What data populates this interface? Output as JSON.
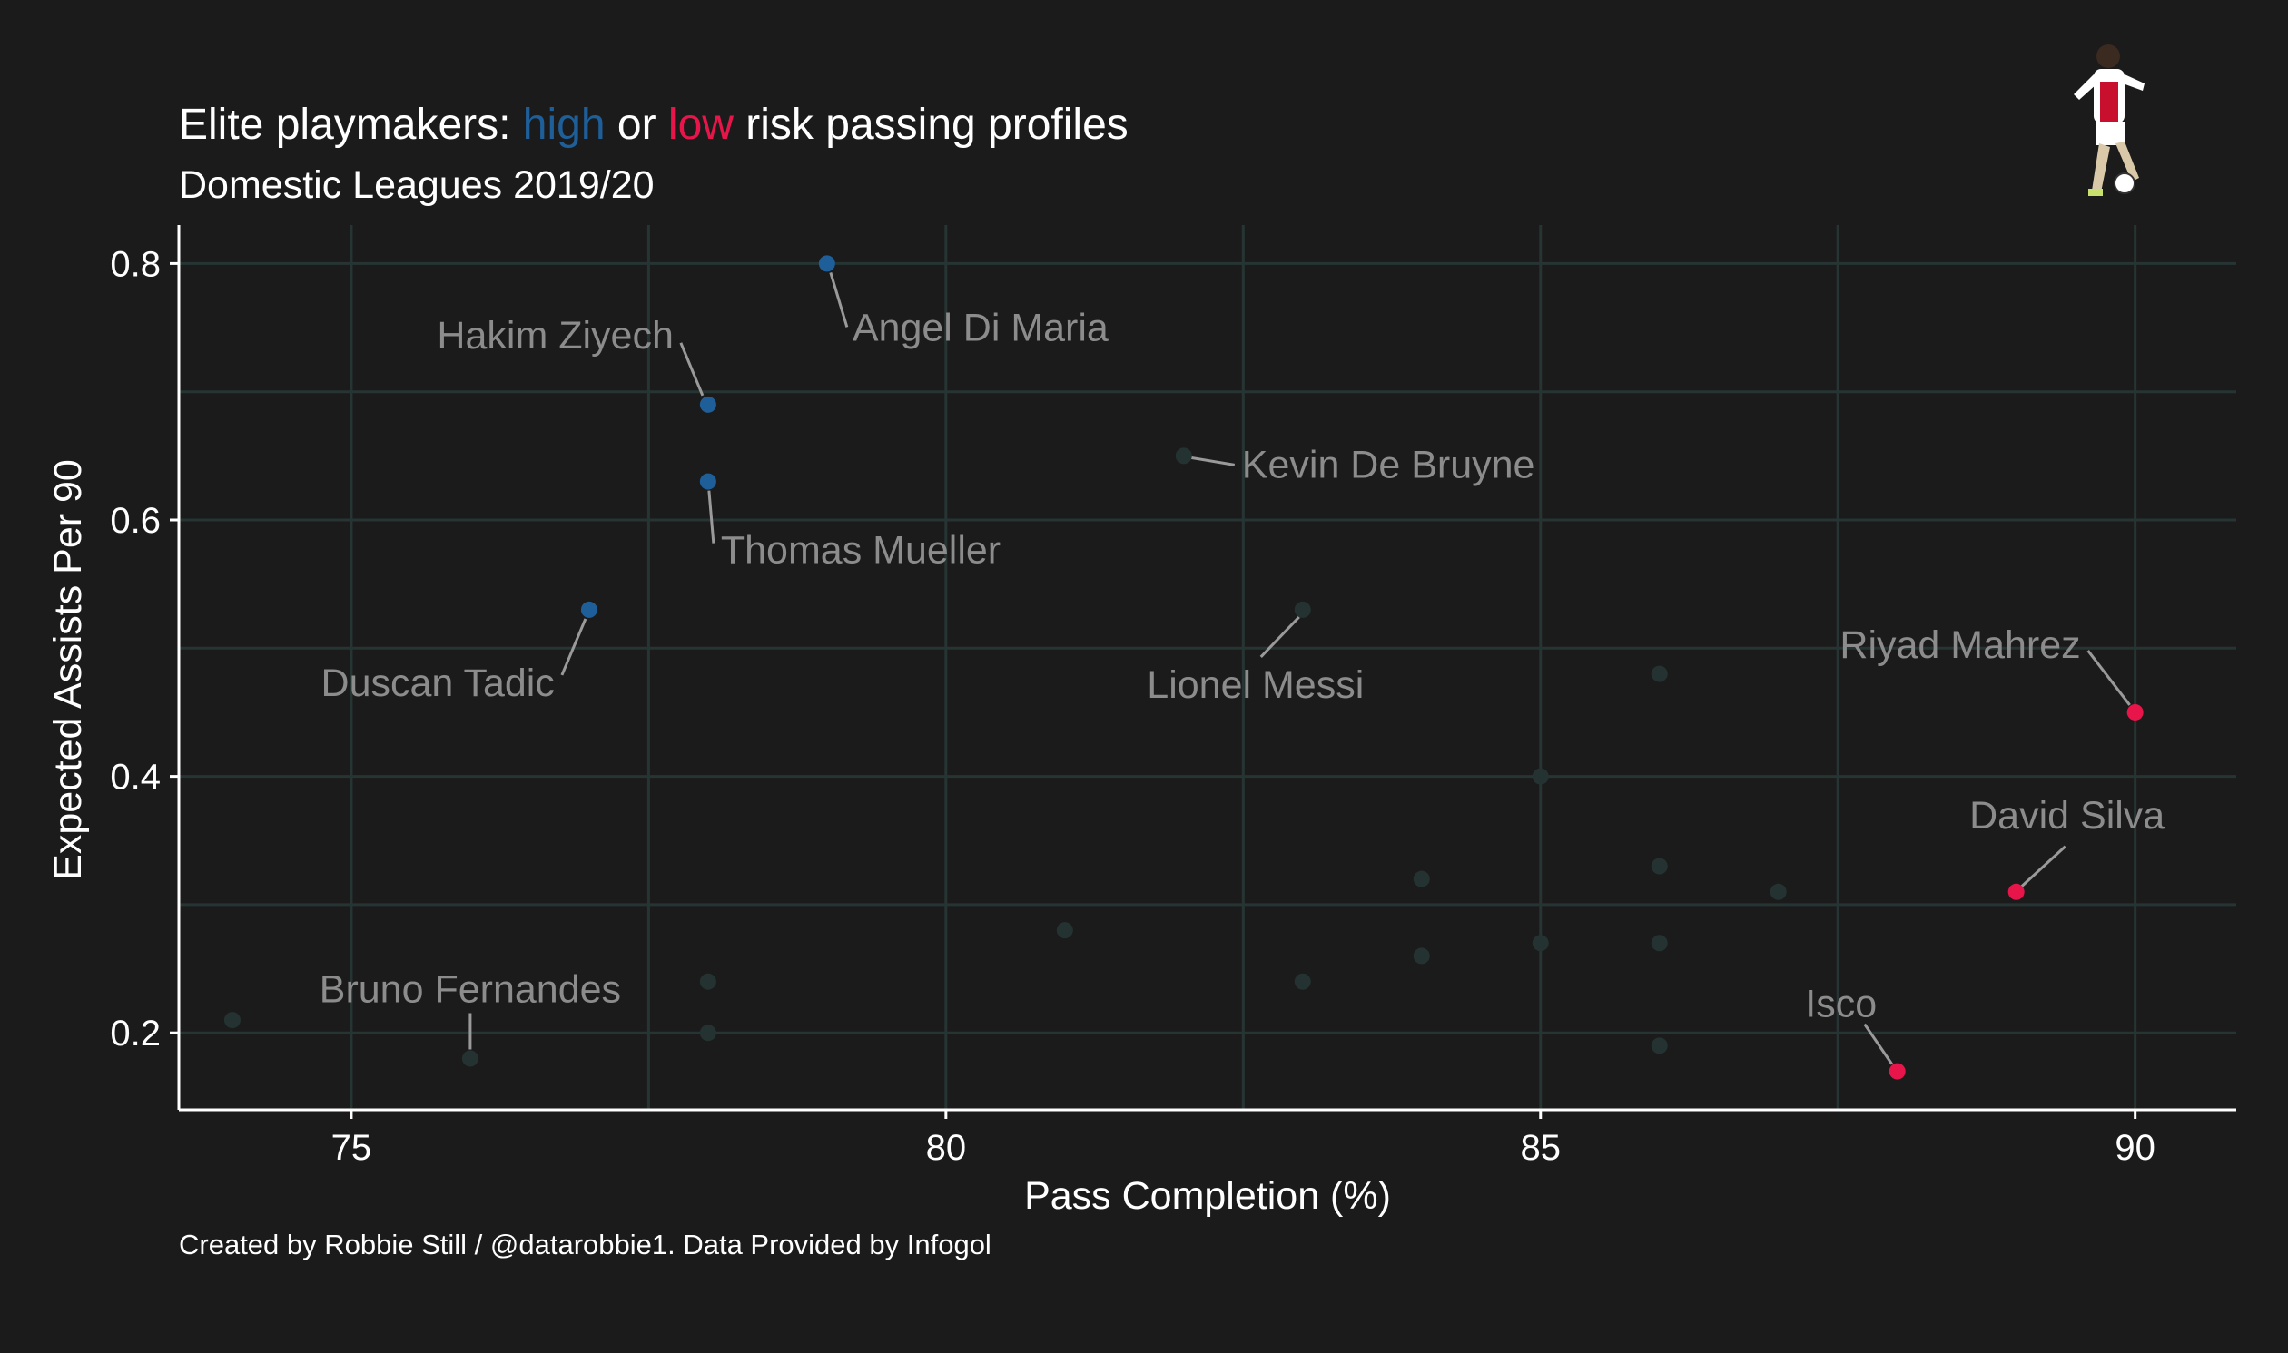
{
  "title": {
    "parts": [
      {
        "text": "Elite playmakers: ",
        "color": "#ffffff"
      },
      {
        "text": "high",
        "color": "#1f5f99"
      },
      {
        "text": " or ",
        "color": "#ffffff"
      },
      {
        "text": "low",
        "color": "#e8154a"
      },
      {
        "text": " risk passing profiles",
        "color": "#ffffff"
      }
    ]
  },
  "subtitle": "Domestic Leagues 2019/20",
  "caption": "Created by Robbie Still / @datarobbie1. Data Provided by Infogol",
  "colors": {
    "background": "#1b1b1b",
    "high": "#1f5f99",
    "low": "#e8154a",
    "neutral": "#243331",
    "grid": "#263533",
    "label": "#8c8c8c"
  },
  "chart_data": {
    "type": "scatter",
    "xlabel": "Pass Completion (%)",
    "ylabel": "Expected Assists Per 90",
    "xlim": [
      73.55,
      90.85
    ],
    "ylim": [
      0.14,
      0.83
    ],
    "x_ticks": [
      75,
      80,
      85,
      90
    ],
    "y_ticks": [
      0.2,
      0.4,
      0.6,
      0.8
    ],
    "grid": true,
    "series": [
      {
        "points": [
          {
            "x": 79,
            "y": 0.8,
            "label": "Angel Di Maria",
            "group": "high"
          },
          {
            "x": 78,
            "y": 0.69,
            "label": "Hakim Ziyech",
            "group": "high"
          },
          {
            "x": 78,
            "y": 0.63,
            "label": "Thomas Mueller",
            "group": "high"
          },
          {
            "x": 77,
            "y": 0.53,
            "label": "Duscan Tadic",
            "group": "high"
          },
          {
            "x": 82,
            "y": 0.65,
            "label": "Kevin De Bruyne",
            "group": "neutral"
          },
          {
            "x": 83,
            "y": 0.53,
            "label": "Lionel Messi",
            "group": "neutral"
          },
          {
            "x": 76,
            "y": 0.18,
            "label": "Bruno Fernandes",
            "group": "neutral"
          },
          {
            "x": 90,
            "y": 0.45,
            "label": "Riyad Mahrez",
            "group": "low"
          },
          {
            "x": 89,
            "y": 0.31,
            "label": "David Silva",
            "group": "low"
          },
          {
            "x": 88,
            "y": 0.17,
            "label": "Isco",
            "group": "low"
          },
          {
            "x": 74,
            "y": 0.21,
            "label": "",
            "group": "neutral"
          },
          {
            "x": 78,
            "y": 0.24,
            "label": "",
            "group": "neutral"
          },
          {
            "x": 78,
            "y": 0.2,
            "label": "",
            "group": "neutral"
          },
          {
            "x": 81,
            "y": 0.28,
            "label": "",
            "group": "neutral"
          },
          {
            "x": 83,
            "y": 0.24,
            "label": "",
            "group": "neutral"
          },
          {
            "x": 84,
            "y": 0.32,
            "label": "",
            "group": "neutral"
          },
          {
            "x": 84,
            "y": 0.26,
            "label": "",
            "group": "neutral"
          },
          {
            "x": 85,
            "y": 0.4,
            "label": "",
            "group": "neutral"
          },
          {
            "x": 85,
            "y": 0.27,
            "label": "",
            "group": "neutral"
          },
          {
            "x": 86,
            "y": 0.48,
            "label": "",
            "group": "neutral"
          },
          {
            "x": 86,
            "y": 0.33,
            "label": "",
            "group": "neutral"
          },
          {
            "x": 86,
            "y": 0.27,
            "label": "",
            "group": "neutral"
          },
          {
            "x": 86,
            "y": 0.19,
            "label": "",
            "group": "neutral"
          },
          {
            "x": 87,
            "y": 0.31,
            "label": "",
            "group": "neutral"
          }
        ]
      }
    ]
  }
}
